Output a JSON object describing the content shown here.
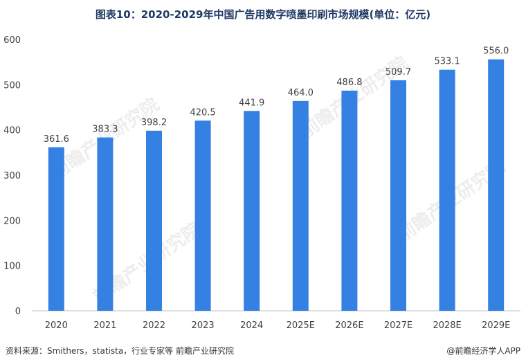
{
  "title": "图表10：2020-2029年中国广告用数字喷墨印刷市场规模(单位：亿元)",
  "source": "资料来源：Smithers，statista，行业专家等 前瞻产业研究院",
  "brand": "@前瞻经济学人APP",
  "watermark": "前瞻产业研究院",
  "colors": {
    "bar": "#3580e3",
    "axis": "#bfbfbf",
    "text": "#404040",
    "title": "#1f3864"
  },
  "chart_data": {
    "type": "bar",
    "title": "图表10：2020-2029年中国广告用数字喷墨印刷市场规模(单位：亿元)",
    "categories": [
      "2020",
      "2021",
      "2022",
      "2023",
      "2024",
      "2025E",
      "2026E",
      "2027E",
      "2028E",
      "2029E"
    ],
    "values": [
      361.6,
      383.3,
      398.2,
      420.5,
      441.9,
      464.0,
      486.8,
      509.7,
      533.1,
      556.0
    ],
    "value_labels": [
      "361.6",
      "383.3",
      "398.2",
      "420.5",
      "441.9",
      "464.0",
      "486.8",
      "509.7",
      "533.1",
      "556.0"
    ],
    "y_ticks": [
      "0",
      "100",
      "200",
      "300",
      "400",
      "500",
      "600"
    ],
    "ylim": [
      0,
      600
    ],
    "xlabel": "",
    "ylabel": "",
    "grid": false,
    "legend": "none"
  }
}
